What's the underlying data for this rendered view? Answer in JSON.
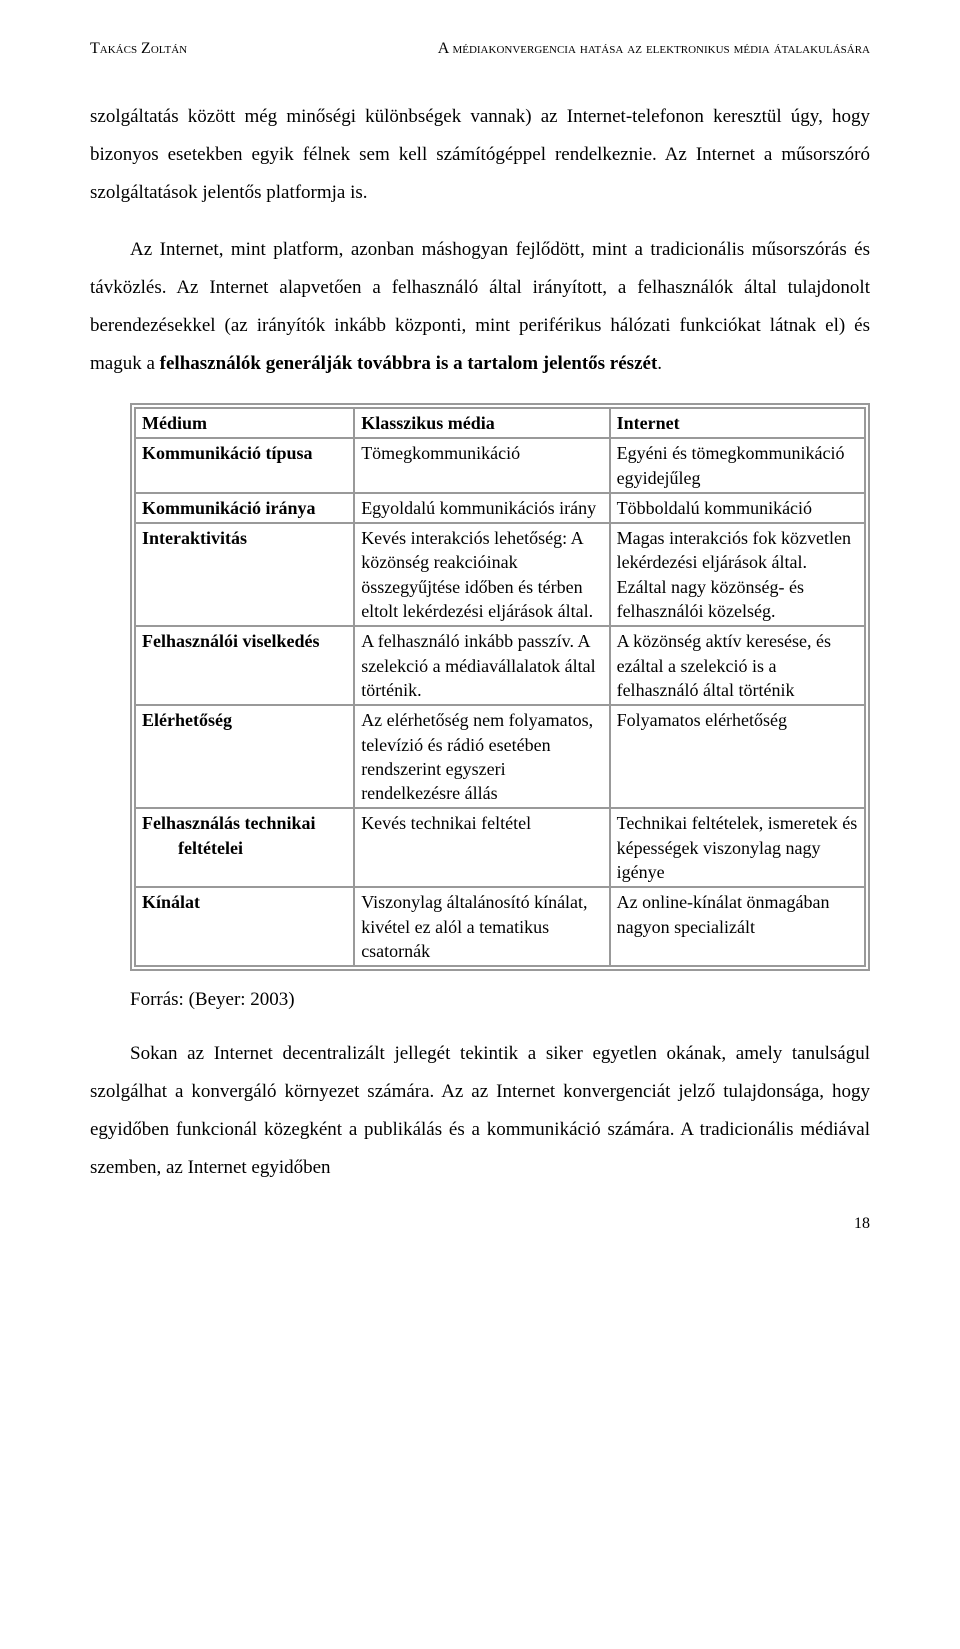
{
  "header": {
    "author": "Takács Zoltán",
    "title": "A médiakonvergencia hatása az elektronikus média átalakulására"
  },
  "paragraphs": {
    "p1": "szolgáltatás között még minőségi különbségek vannak) az Internet-telefonon keresztül úgy, hogy bizonyos esetekben egyik félnek sem kell számítógéppel rendelkeznie. Az Internet a műsorszóró szolgáltatások jelentős platformja is.",
    "p2_part1": "Az Internet, mint platform, azonban máshogyan fejlődött, mint a tradicionális műsorszórás és távközlés. Az Internet alapvetően a felhasználó által irányított, a felhasználók által tulajdonolt berendezésekkel (az irányítók inkább központi, mint periférikus hálózati funkciókat látnak el) és maguk a ",
    "p2_bold": "felhasználók generálják továbbra is a tartalom jelentős részét",
    "p2_end": "."
  },
  "table": {
    "headers": {
      "c0": "Médium",
      "c1": "Klasszikus média",
      "c2": "Internet"
    },
    "rows": [
      {
        "c0": "Kommunikáció típusa",
        "c1": "Tömegkommunikáció",
        "c2": "Egyéni és tömegkommunikáció egyidejűleg"
      },
      {
        "c0": "Kommunikáció iránya",
        "c1": "Egyoldalú kommunikációs irány",
        "c2": "Többoldalú kommunikáció"
      },
      {
        "c0": "Interaktivitás",
        "c1": "Kevés interakciós lehetőség: A közönség reakcióinak összegyűjtése időben és térben eltolt lekérdezési eljárások által.",
        "c2": "Magas interakciós fok közvetlen lekérdezési eljárások által. Ezáltal nagy közönség- és felhasználói közelség."
      },
      {
        "c0": "Felhasználói viselkedés",
        "c1": "A felhasználó inkább passzív. A szelekció a médiavállalatok által történik.",
        "c2": "A közönség aktív keresése, és ezáltal a szelekció is a felhasználó által történik"
      },
      {
        "c0": "Elérhetőség",
        "c1": "Az elérhetőség nem folyamatos, televízió és rádió esetében rendszerint egyszeri rendelkezésre állás",
        "c2": "Folyamatos elérhetőség"
      },
      {
        "c0": "Felhasználás technikai feltételei",
        "c1": "Kevés technikai feltétel",
        "c2": "Technikai feltételek, ismeretek és képességek viszonylag nagy igénye"
      },
      {
        "c0": "Kínálat",
        "c1": "Viszonylag általánosító kínálat, kivétel ez alól a tematikus csatornák",
        "c2": "Az online-kínálat önmagában nagyon specializált"
      }
    ]
  },
  "source": "Forrás: (Beyer: 2003)",
  "closing": "Sokan az Internet decentralizált jellegét tekintik a siker egyetlen okának, amely tanulságul szolgálhat a konvergáló környezet számára. Az az Internet konvergenciát jelző tulajdonsága, hogy egyidőben funkcionál közegként a publikálás és a kommunikáció számára. A tradicionális médiával szemben, az Internet egyidőben",
  "pageNumber": "18"
}
